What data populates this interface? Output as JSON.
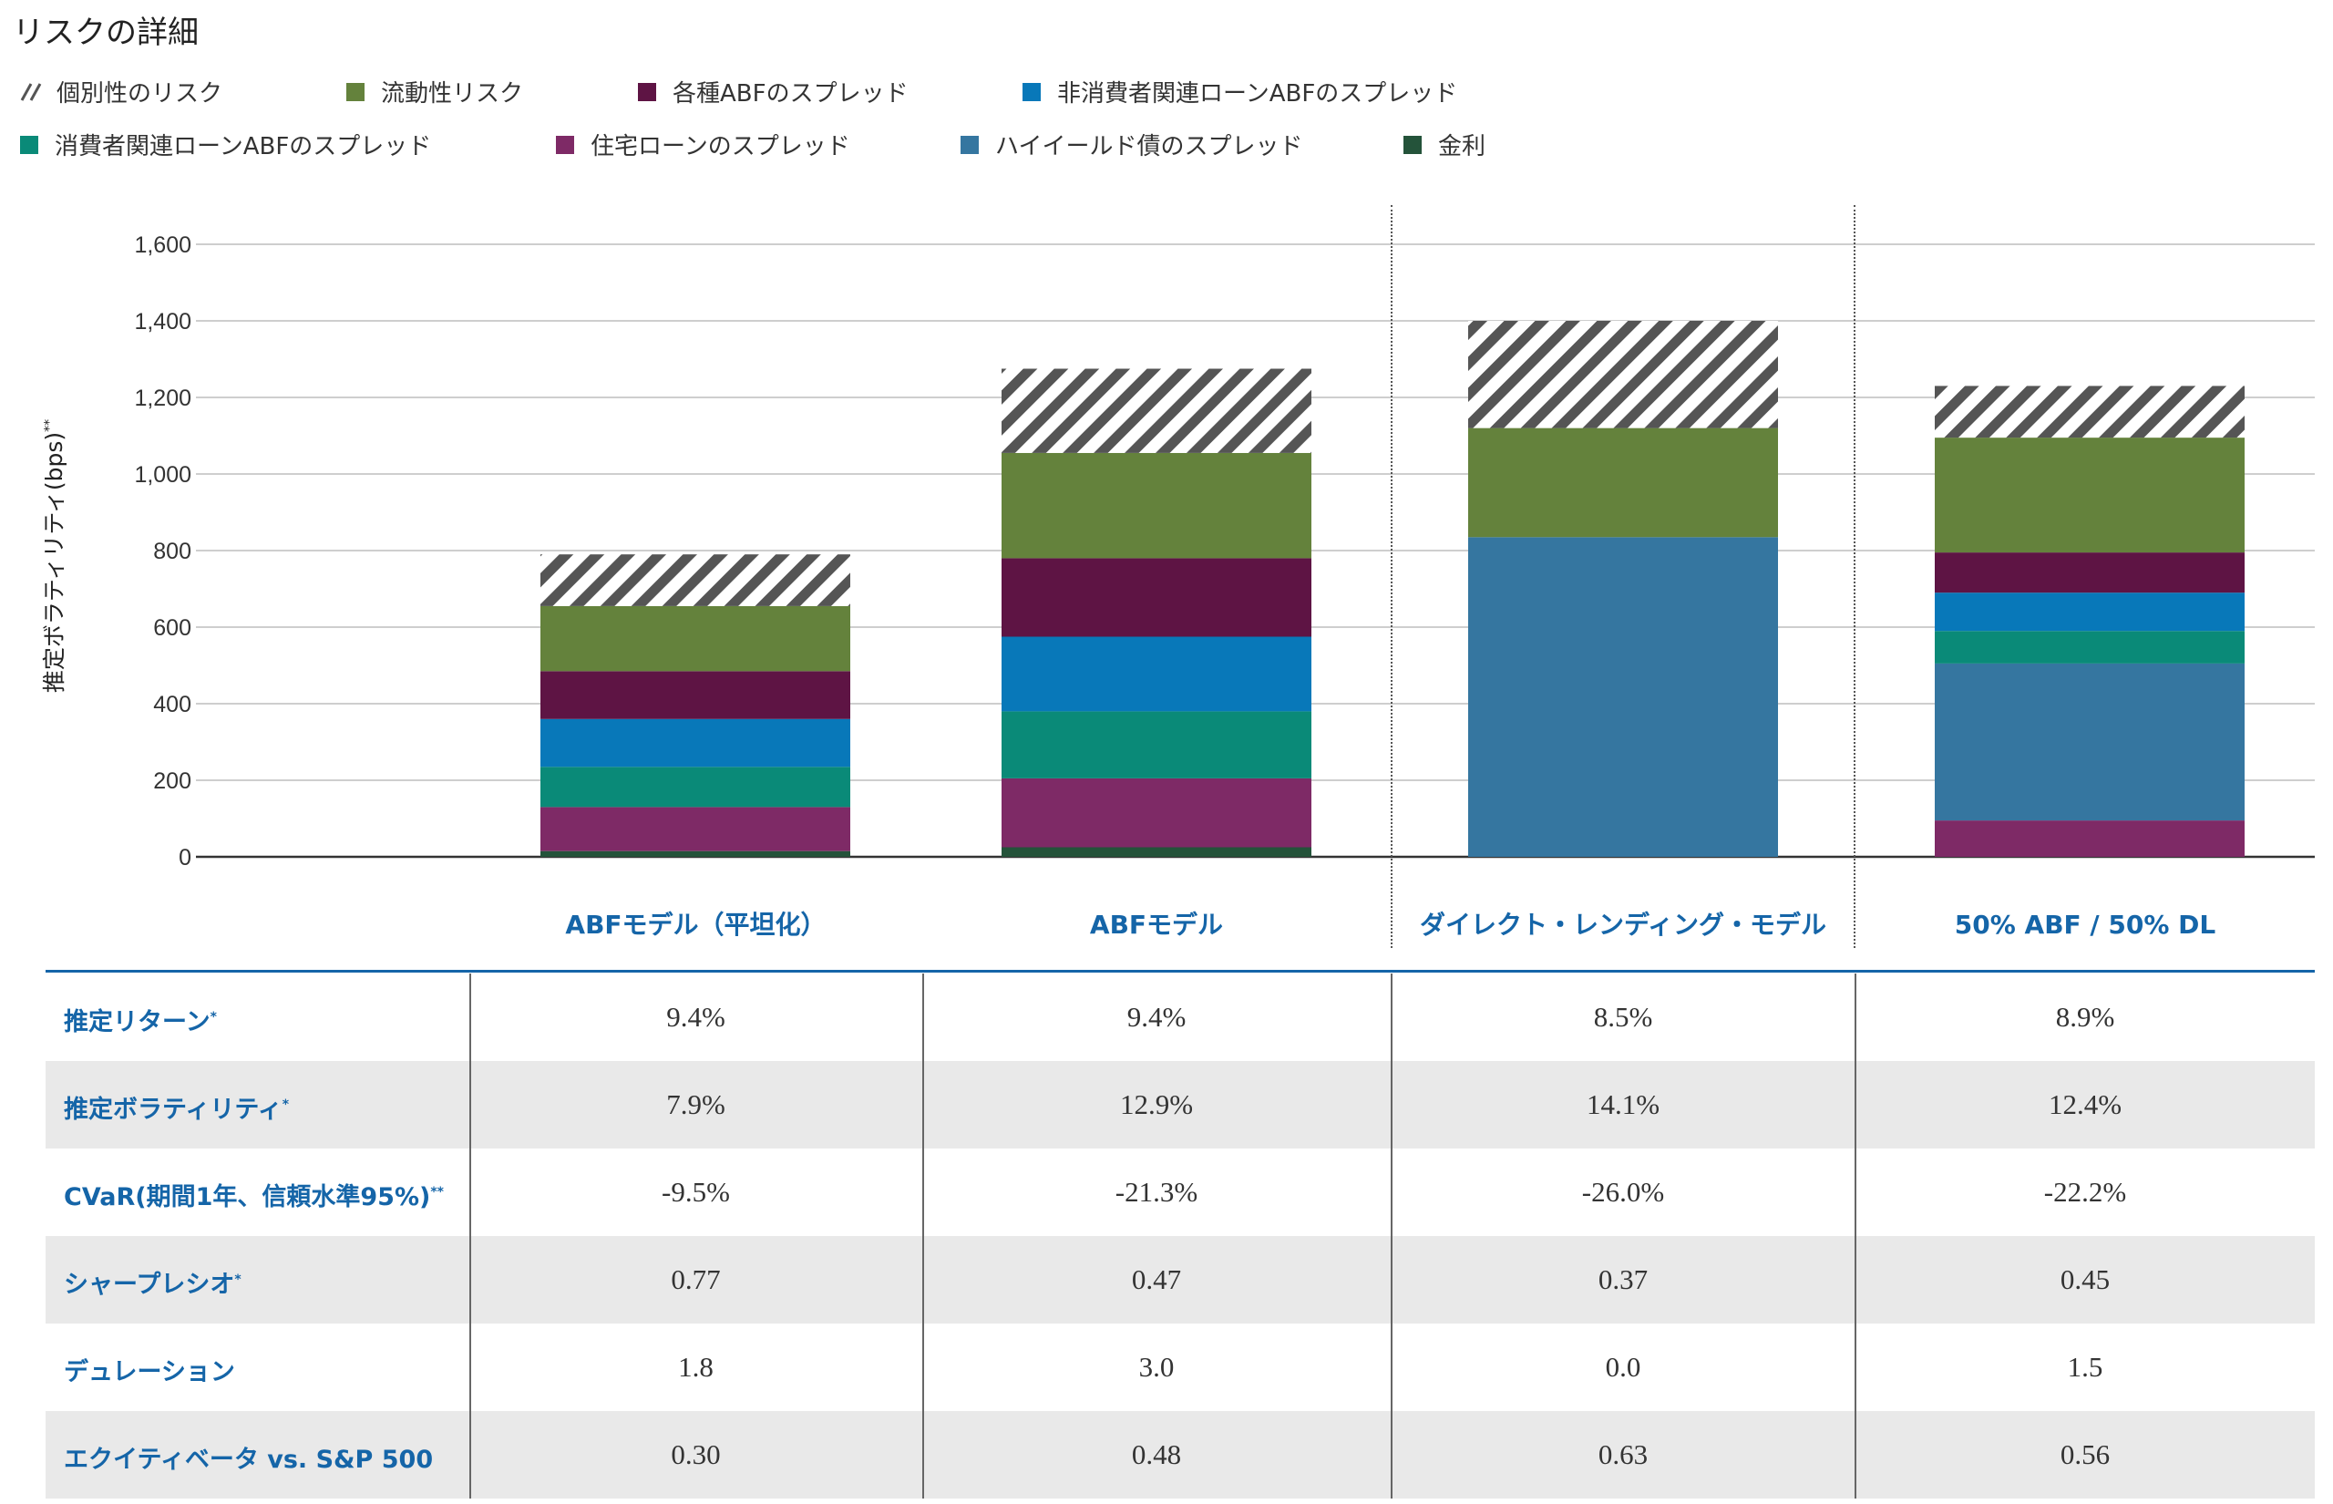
{
  "title": "リスクの詳細",
  "legend": {
    "row1": [
      {
        "label": "個別性のリスク",
        "color": "hatch"
      },
      {
        "label": "流動性リスク",
        "color": "#64823c"
      },
      {
        "label": "各種ABFのスプレッド",
        "color": "#5e1444"
      },
      {
        "label": "非消費者関連ローンABFのスプレッド",
        "color": "#0878b9"
      }
    ],
    "row2": [
      {
        "label": "消費者関連ローンABFのスプレッド",
        "color": "#0a8a78"
      },
      {
        "label": "住宅ローンのスプレッド",
        "color": "#7e2a66"
      },
      {
        "label": "ハイイールド債のスプレッド",
        "color": "#3576a0"
      },
      {
        "label": "金利",
        "color": "#24533a"
      }
    ]
  },
  "chart_data": {
    "type": "bar",
    "stacked": true,
    "ylabel": "推定ボラティリティ(bps)",
    "ylabel_mark": "**",
    "ylim": [
      0,
      1600
    ],
    "yticks": [
      "0",
      "200",
      "400",
      "600",
      "800",
      "1,000",
      "1,200",
      "1,400",
      "1,600"
    ],
    "categories": [
      "ABFモデル（平坦化）",
      "ABFモデル",
      "ダイレクト・レンディング・モデル",
      "50% ABF / 50% DL"
    ],
    "series": [
      {
        "name": "金利",
        "color": "#24533a",
        "values": [
          15,
          25,
          0,
          0
        ]
      },
      {
        "name": "住宅ローンのスプレッド",
        "color": "#7e2a66",
        "values": [
          115,
          180,
          0,
          95
        ]
      },
      {
        "name": "ハイイールド債のスプレッド",
        "color": "#3576a0",
        "values": [
          0,
          0,
          835,
          410
        ]
      },
      {
        "name": "消費者関連ローンABFのスプレッド",
        "color": "#0a8a78",
        "values": [
          105,
          175,
          0,
          85
        ]
      },
      {
        "name": "非消費者関連ローンABFのスプレッド",
        "color": "#0878b9",
        "values": [
          125,
          195,
          0,
          100
        ]
      },
      {
        "name": "各種ABFのスプレッド",
        "color": "#5e1444",
        "values": [
          125,
          205,
          0,
          105
        ]
      },
      {
        "name": "流動性リスク",
        "color": "#64823c",
        "values": [
          170,
          275,
          285,
          300
        ]
      },
      {
        "name": "個別性のリスク",
        "color": "hatch",
        "values": [
          135,
          220,
          280,
          135
        ]
      }
    ],
    "grid": true
  },
  "table": {
    "rows": [
      {
        "label": "推定リターン",
        "mark": "*",
        "values": [
          "9.4%",
          "9.4%",
          "8.5%",
          "8.9%"
        ]
      },
      {
        "label": "推定ボラティリティ",
        "mark": "*",
        "values": [
          "7.9%",
          "12.9%",
          "14.1%",
          "12.4%"
        ]
      },
      {
        "label": "CVaR(期間1年、信頼水準95%)",
        "mark": "**",
        "values": [
          "-9.5%",
          "-21.3%",
          "-26.0%",
          "-22.2%"
        ]
      },
      {
        "label": "シャープレシオ",
        "mark": "*",
        "values": [
          "0.77",
          "0.47",
          "0.37",
          "0.45"
        ]
      },
      {
        "label": "デュレーション",
        "mark": "",
        "values": [
          "1.8",
          "3.0",
          "0.0",
          "1.5"
        ]
      },
      {
        "label": "エクイティベータ vs. S&P 500",
        "mark": "",
        "values": [
          "0.30",
          "0.48",
          "0.63",
          "0.56"
        ]
      }
    ]
  }
}
